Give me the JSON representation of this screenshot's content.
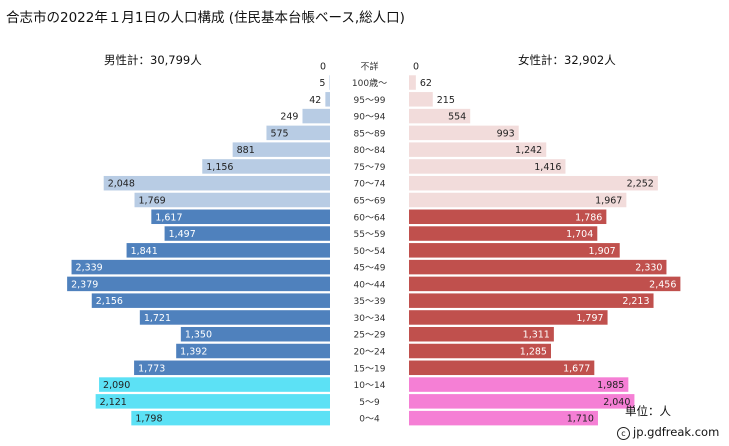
{
  "title": "合志市の2022年１月1日の人口構成 (住民基本台帳ベース,総人口)",
  "male_total": "男性計：30,799人",
  "female_total": "女性計：32,902人",
  "unit": "単位：人",
  "credit": "jp.gdfreak.com",
  "credit_symbol": "c",
  "chart_data": {
    "type": "bar",
    "orientation": "horizontal-population-pyramid",
    "categories": [
      "不詳",
      "100歳～",
      "95～99",
      "90～94",
      "85～89",
      "80～84",
      "75～79",
      "70～74",
      "65～69",
      "60～64",
      "55～59",
      "50～54",
      "45～49",
      "40～44",
      "35～39",
      "30～34",
      "25～29",
      "20～24",
      "15～19",
      "10～14",
      "5～9",
      "0～4"
    ],
    "series": [
      {
        "name": "男性",
        "values": [
          0,
          5,
          42,
          249,
          575,
          881,
          1156,
          2048,
          1769,
          1617,
          1497,
          1841,
          2339,
          2379,
          2156,
          1721,
          1350,
          1392,
          1773,
          2090,
          2121,
          1798
        ],
        "labels": [
          "0",
          "5",
          "42",
          "249",
          "575",
          "881",
          "1,156",
          "2,048",
          "1,769",
          "1,617",
          "1,497",
          "1,841",
          "2,339",
          "2,379",
          "2,156",
          "1,721",
          "1,350",
          "1,392",
          "1,773",
          "2,090",
          "2,121",
          "1,798"
        ]
      },
      {
        "name": "女性",
        "values": [
          0,
          62,
          215,
          554,
          993,
          1242,
          1416,
          2252,
          1967,
          1786,
          1704,
          1907,
          2330,
          2456,
          2213,
          1797,
          1311,
          1285,
          1677,
          1985,
          2040,
          1710
        ],
        "labels": [
          "0",
          "62",
          "215",
          "554",
          "993",
          "1,242",
          "1,416",
          "2,252",
          "1,967",
          "1,786",
          "1,704",
          "1,907",
          "2,330",
          "2,456",
          "2,213",
          "1,797",
          "1,311",
          "1,285",
          "1,677",
          "1,985",
          "2,040",
          "1,710"
        ]
      }
    ],
    "xlim": [
      0,
      2500
    ],
    "colors": {
      "male_elderly": "#b8cce4",
      "male_working": "#4f81bd",
      "male_child": "#5ce1f5",
      "female_elderly": "#f2dcdb",
      "female_working": "#c0504d",
      "female_child": "#f57fd5"
    },
    "groups": [
      "elderly",
      "elderly",
      "elderly",
      "elderly",
      "elderly",
      "elderly",
      "elderly",
      "elderly",
      "elderly",
      "working",
      "working",
      "working",
      "working",
      "working",
      "working",
      "working",
      "working",
      "working",
      "working",
      "child",
      "child",
      "child"
    ]
  }
}
